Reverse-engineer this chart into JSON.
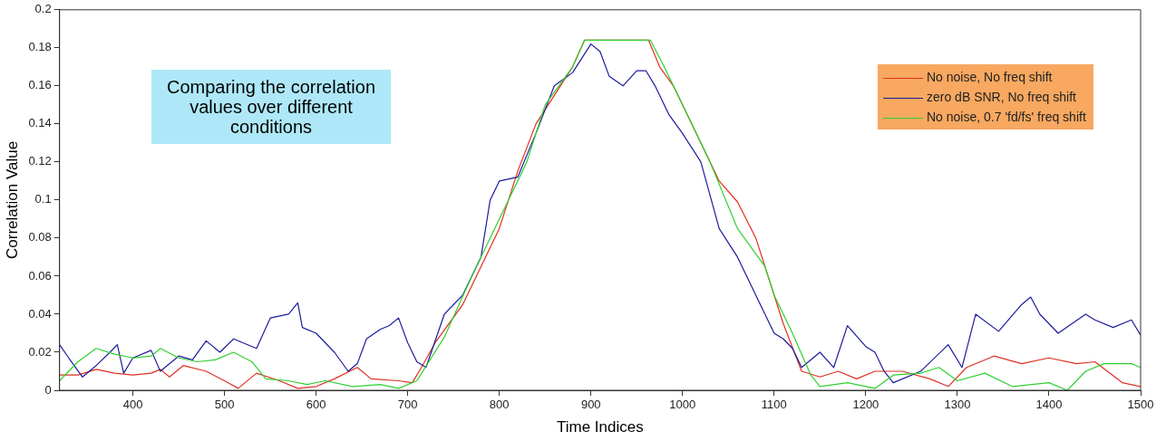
{
  "chart_data": {
    "type": "line",
    "xlabel": "Time Indices",
    "ylabel": "Correlation Value",
    "annotations": [
      "Comparing the correlation values over different conditions"
    ],
    "xlim": [
      320,
      1500
    ],
    "xticks": [
      400,
      500,
      600,
      700,
      800,
      900,
      1000,
      1100,
      1200,
      1300,
      1400,
      1500
    ],
    "ylim": [
      0,
      0.2
    ],
    "yticks": [
      0,
      0.02,
      0.04,
      0.06,
      0.08,
      0.1,
      0.12,
      0.14,
      0.16,
      0.18,
      0.2
    ],
    "grid": false,
    "legend": "top right",
    "marker": "none",
    "line_style": "solid",
    "series": [
      {
        "name": "No noise, No freq shift",
        "color": "#e03020",
        "x": [
          320,
          340,
          360,
          380,
          400,
          420,
          430,
          440,
          455,
          480,
          500,
          515,
          535,
          560,
          580,
          600,
          620,
          645,
          660,
          690,
          705,
          715,
          730,
          760,
          800,
          820,
          840,
          860,
          880,
          893,
          963,
          975,
          990,
          1010,
          1040,
          1060,
          1080,
          1100,
          1110,
          1130,
          1150,
          1170,
          1190,
          1210,
          1240,
          1270,
          1290,
          1310,
          1340,
          1370,
          1400,
          1430,
          1450,
          1480,
          1500
        ],
        "values": [
          0.008,
          0.008,
          0.011,
          0.009,
          0.008,
          0.009,
          0.011,
          0.007,
          0.013,
          0.01,
          0.005,
          0.001,
          0.009,
          0.005,
          0.001,
          0.002,
          0.006,
          0.012,
          0.006,
          0.005,
          0.004,
          0.012,
          0.025,
          0.045,
          0.085,
          0.115,
          0.14,
          0.155,
          0.17,
          0.184,
          0.184,
          0.17,
          0.16,
          0.14,
          0.11,
          0.099,
          0.08,
          0.05,
          0.035,
          0.01,
          0.007,
          0.01,
          0.006,
          0.01,
          0.01,
          0.006,
          0.002,
          0.012,
          0.018,
          0.014,
          0.017,
          0.014,
          0.015,
          0.004,
          0.002
        ]
      },
      {
        "name": "zero dB SNR, No freq shift",
        "color": "#1c1c9c",
        "x": [
          320,
          330,
          345,
          360,
          375,
          383,
          390,
          400,
          420,
          430,
          450,
          465,
          480,
          495,
          510,
          520,
          535,
          550,
          570,
          580,
          585,
          600,
          620,
          635,
          645,
          655,
          670,
          680,
          690,
          700,
          710,
          720,
          740,
          760,
          780,
          790,
          800,
          820,
          840,
          860,
          880,
          900,
          910,
          920,
          935,
          950,
          960,
          970,
          985,
          1000,
          1020,
          1040,
          1060,
          1080,
          1100,
          1110,
          1120,
          1130,
          1150,
          1165,
          1180,
          1200,
          1210,
          1220,
          1230,
          1260,
          1290,
          1305,
          1320,
          1345,
          1370,
          1380,
          1390,
          1410,
          1440,
          1450,
          1470,
          1490,
          1500
        ],
        "values": [
          0.024,
          0.017,
          0.007,
          0.013,
          0.02,
          0.024,
          0.009,
          0.017,
          0.021,
          0.01,
          0.018,
          0.016,
          0.026,
          0.02,
          0.027,
          0.025,
          0.022,
          0.038,
          0.04,
          0.046,
          0.033,
          0.03,
          0.02,
          0.01,
          0.014,
          0.027,
          0.032,
          0.034,
          0.038,
          0.025,
          0.015,
          0.012,
          0.04,
          0.05,
          0.07,
          0.1,
          0.11,
          0.112,
          0.135,
          0.16,
          0.167,
          0.182,
          0.178,
          0.165,
          0.16,
          0.168,
          0.168,
          0.16,
          0.145,
          0.135,
          0.12,
          0.085,
          0.07,
          0.05,
          0.03,
          0.027,
          0.022,
          0.012,
          0.02,
          0.012,
          0.034,
          0.023,
          0.02,
          0.01,
          0.004,
          0.01,
          0.024,
          0.012,
          0.04,
          0.031,
          0.045,
          0.049,
          0.04,
          0.03,
          0.04,
          0.037,
          0.033,
          0.037,
          0.029
        ]
      },
      {
        "name": "No noise, 0.7 'fd/fs' freq shift",
        "color": "#30d030",
        "x": [
          320,
          340,
          360,
          380,
          400,
          420,
          430,
          450,
          470,
          490,
          510,
          530,
          545,
          570,
          590,
          610,
          640,
          670,
          690,
          710,
          740,
          770,
          800,
          830,
          850,
          880,
          893,
          965,
          980,
          1000,
          1030,
          1060,
          1090,
          1100,
          1120,
          1140,
          1150,
          1180,
          1210,
          1230,
          1260,
          1280,
          1300,
          1330,
          1360,
          1400,
          1420,
          1440,
          1460,
          1490,
          1500
        ],
        "values": [
          0.005,
          0.015,
          0.022,
          0.019,
          0.017,
          0.018,
          0.022,
          0.017,
          0.015,
          0.016,
          0.02,
          0.015,
          0.006,
          0.005,
          0.003,
          0.005,
          0.002,
          0.003,
          0.001,
          0.005,
          0.028,
          0.06,
          0.09,
          0.12,
          0.15,
          0.17,
          0.184,
          0.184,
          0.17,
          0.15,
          0.12,
          0.085,
          0.065,
          0.05,
          0.03,
          0.008,
          0.002,
          0.004,
          0.001,
          0.008,
          0.009,
          0.012,
          0.005,
          0.009,
          0.002,
          0.004,
          0,
          0.01,
          0.014,
          0.014,
          0.012
        ]
      }
    ]
  }
}
